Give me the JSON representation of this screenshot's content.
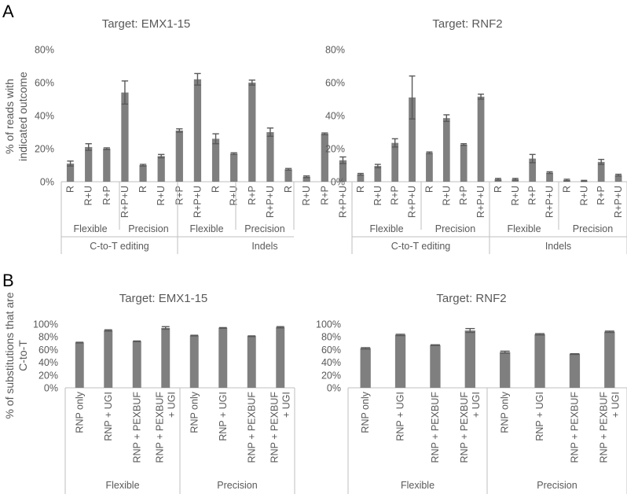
{
  "panel_labels": [
    "A",
    "B"
  ],
  "chart_data": [
    {
      "id": "A1",
      "type": "bar",
      "title": "Target: EMX1-15",
      "ylabel_lines": [
        "% of reads with",
        "indicated outcome"
      ],
      "ylim": [
        0,
        80
      ],
      "yticks": [
        "0%",
        "20%",
        "40%",
        "60%",
        "80%"
      ],
      "categories": [
        "R",
        "R+U",
        "R+P",
        "R+P+U",
        "R",
        "R+U",
        "R+P",
        "R+P+U",
        "R",
        "R+U",
        "R+P",
        "R+P+U",
        "R",
        "R+U",
        "R+P",
        "R+P+U"
      ],
      "values": [
        11,
        21,
        20,
        54,
        10,
        15.5,
        31,
        62,
        26,
        17,
        60,
        30,
        7.5,
        3,
        29,
        13
      ],
      "errors": [
        1.5,
        2,
        0.5,
        7,
        0.5,
        1,
        1,
        3.5,
        3,
        0.5,
        1.5,
        2.5,
        0.5,
        0.5,
        0.5,
        2
      ],
      "subgroups": [
        "Flexible",
        "Precision",
        "Flexible",
        "Precision"
      ],
      "groups": [
        "C-to-T editing",
        "Indels"
      ]
    },
    {
      "id": "A2",
      "type": "bar",
      "title": "Target: RNF2",
      "ylabel_lines": [],
      "ylim": [
        0,
        80
      ],
      "yticks": [
        "0%",
        "20%",
        "40%",
        "60%",
        "80%"
      ],
      "categories": [
        "R",
        "R+U",
        "R+P",
        "R+P+U",
        "R",
        "R+U",
        "R+P",
        "R+P+U",
        "R",
        "R+U",
        "R+P",
        "R+P+U",
        "R",
        "R+U",
        "R+P",
        "R+P+U"
      ],
      "values": [
        4.5,
        9.5,
        23.5,
        51,
        17.5,
        38.5,
        22.5,
        51.5,
        1.5,
        1.5,
        14,
        5.5,
        1,
        0.5,
        12,
        4
      ],
      "errors": [
        0.5,
        1,
        2.5,
        13,
        0.5,
        2,
        0.5,
        1.5,
        0.5,
        0.5,
        2.5,
        0.5,
        0.5,
        0.3,
        1.5,
        0.5
      ],
      "subgroups": [
        "Flexible",
        "Precision",
        "Flexible",
        "Precision"
      ],
      "groups": [
        "C-to-T editing",
        "Indels"
      ]
    },
    {
      "id": "B1",
      "type": "bar",
      "title": "Target: EMX1-15",
      "ylabel_lines": [
        "% of substitutions that are",
        "C-to-T"
      ],
      "ylim": [
        0,
        100
      ],
      "yticks": [
        "0%",
        "20%",
        "40%",
        "60%",
        "80%",
        "100%"
      ],
      "categories": [
        "RNP only",
        "RNP + UGI",
        "RNP + PEXBUF",
        "RNP + PEXBUF + UGI",
        "RNP only",
        "RNP + UGI",
        "RNP + PEXBUF",
        "RNP + PEXBUF + UGI"
      ],
      "values": [
        71,
        90,
        73,
        94,
        82,
        94,
        81,
        95
      ],
      "errors": [
        0.5,
        1,
        0.5,
        2,
        0.5,
        0.5,
        0.5,
        1
      ],
      "subgroups": [
        "Flexible",
        "Precision"
      ]
    },
    {
      "id": "B2",
      "type": "bar",
      "title": "Target: RNF2",
      "ylabel_lines": [],
      "ylim": [
        0,
        100
      ],
      "yticks": [
        "0%",
        "20%",
        "40%",
        "60%",
        "80%",
        "100%"
      ],
      "categories": [
        "RNP only",
        "RNP + UGI",
        "RNP + PEXBUF",
        "RNP + PEXBUF + UGI",
        "RNP only",
        "RNP + UGI",
        "RNP + PEXBUF",
        "RNP + PEXBUF + UGI"
      ],
      "values": [
        62,
        83,
        67,
        90,
        56,
        84,
        53,
        88
      ],
      "errors": [
        1,
        1,
        0.5,
        3,
        1.5,
        1,
        0.5,
        1
      ],
      "subgroups": [
        "Flexible",
        "Precision"
      ]
    }
  ]
}
